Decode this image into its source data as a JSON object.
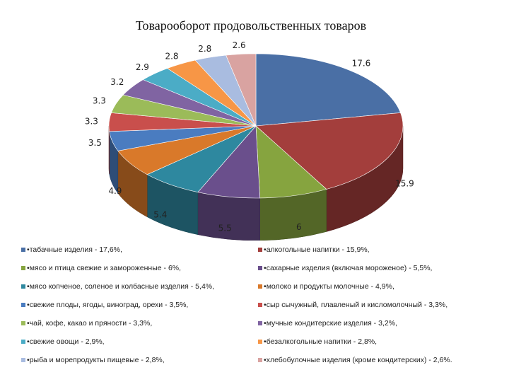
{
  "chart_data": {
    "type": "pie",
    "style": "3d",
    "title": "Товарооборот продовольственных товаров",
    "slices": [
      {
        "value": 17.6,
        "label": "17.6",
        "legend": "табачные изделия - 17,6%,",
        "color": "#4a6fa5"
      },
      {
        "value": 15.9,
        "label": "15.9",
        "legend": "алкогольные напитки - 15,9%,",
        "color": "#a33e3c"
      },
      {
        "value": 6,
        "label": "6",
        "legend": "мясо и птица свежие и замороженные - 6%,",
        "color": "#86a43f"
      },
      {
        "value": 5.5,
        "label": "5.5",
        "legend": "сахарные изделия (включая мороженое) - 5,5%,",
        "color": "#6a4f8c"
      },
      {
        "value": 5.4,
        "label": "5.4",
        "legend": "мясо копченое, соленое и колбасные изделия - 5,4%,",
        "color": "#2e889f"
      },
      {
        "value": 4.9,
        "label": "4.9",
        "legend": "молоко и продукты молочные - 4,9%,",
        "color": "#d9792a"
      },
      {
        "value": 3.5,
        "label": "3.5",
        "legend": "свежие плоды, ягоды, виноград, орехи - 3,5%,",
        "color": "#4a7cc0"
      },
      {
        "value": 3.3,
        "label": "3.3",
        "legend": "сыр сычужный, плавленый и кисломолочный - 3,3%,",
        "color": "#c94f4c"
      },
      {
        "value": 3.3,
        "label": "3.3",
        "legend": "чай, кофе, какао и пряности - 3,3%,",
        "color": "#9bbb59"
      },
      {
        "value": 3.2,
        "label": "3.2",
        "legend": "мучные кондитерские изделия - 3,2%,",
        "color": "#8064a2"
      },
      {
        "value": 2.9,
        "label": "2.9",
        "legend": "свежие овощи - 2,9%,",
        "color": "#4bacc6"
      },
      {
        "value": 2.8,
        "label": "2.8",
        "legend": "безалкогольные напитки - 2,8%,",
        "color": "#f79646"
      },
      {
        "value": 2.8,
        "label": "2.8",
        "legend": "рыба и морепродукты пищевые - 2,8%,",
        "color": "#a9bce0"
      },
      {
        "value": 2.6,
        "label": "2.6",
        "legend": "хлебобулочные изделия (кроме кондитерских) - 2,6%.",
        "color": "#d9a3a1"
      }
    ],
    "legend_position": "bottom"
  }
}
